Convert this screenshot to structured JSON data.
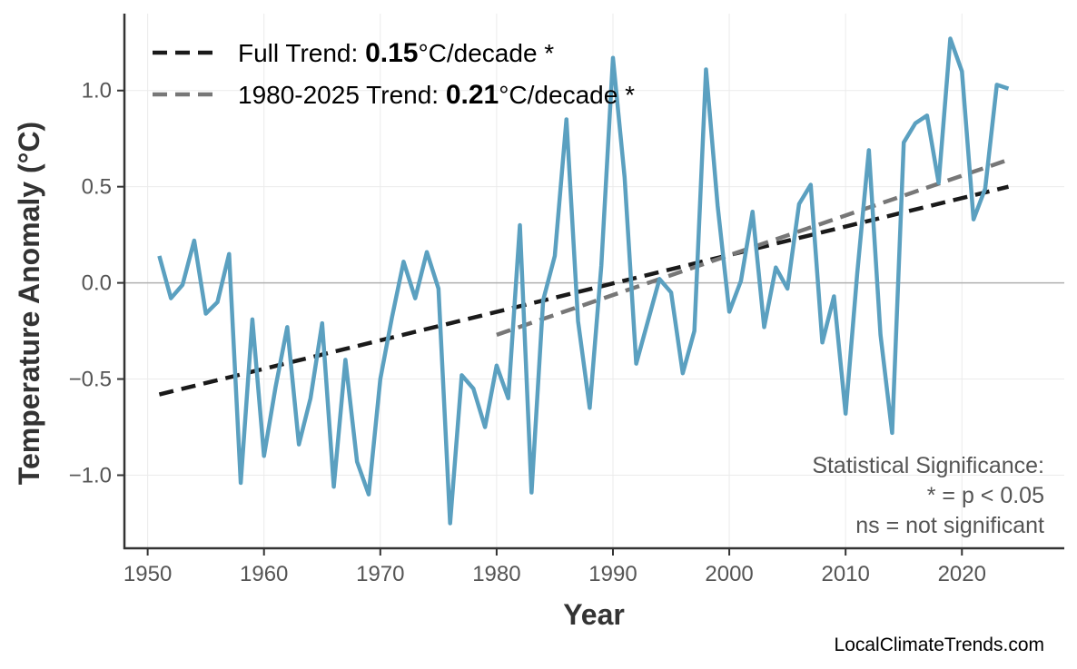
{
  "chart_data": {
    "type": "line",
    "title": "",
    "xlabel": "Year",
    "ylabel": "Temperature Anomaly (°C)",
    "xlim": [
      1948,
      2028.8
    ],
    "ylim": [
      -1.38,
      1.4
    ],
    "grid": true,
    "x_ticks": [
      1950,
      1960,
      1970,
      1980,
      1990,
      2000,
      2010,
      2020
    ],
    "y_ticks": [
      -1.0,
      -0.5,
      0.0,
      0.5,
      1.0
    ],
    "y_tick_labels": [
      "−1.0",
      "−0.5",
      "0.0",
      "0.5",
      "1.0"
    ],
    "series": [
      {
        "color": "#5ba0c0",
        "x": [
          1951,
          1952,
          1953,
          1954,
          1955,
          1956,
          1957,
          1958,
          1959,
          1960,
          1961,
          1962,
          1963,
          1964,
          1965,
          1966,
          1967,
          1968,
          1969,
          1970,
          1971,
          1972,
          1973,
          1974,
          1975,
          1976,
          1977,
          1978,
          1979,
          1980,
          1981,
          1982,
          1983,
          1984,
          1985,
          1986,
          1987,
          1988,
          1989,
          1990,
          1991,
          1992,
          1993,
          1994,
          1995,
          1996,
          1997,
          1998,
          1999,
          2000,
          2001,
          2002,
          2003,
          2004,
          2005,
          2006,
          2007,
          2008,
          2009,
          2010,
          2011,
          2012,
          2013,
          2014,
          2015,
          2016,
          2017,
          2018,
          2019,
          2020,
          2021,
          2022,
          2023,
          2024
        ],
        "y": [
          0.14,
          -0.08,
          -0.01,
          0.22,
          -0.16,
          -0.1,
          0.15,
          -1.04,
          -0.19,
          -0.9,
          -0.54,
          -0.23,
          -0.84,
          -0.6,
          -0.21,
          -1.06,
          -0.4,
          -0.93,
          -1.1,
          -0.5,
          -0.18,
          0.11,
          -0.08,
          0.16,
          -0.03,
          -1.25,
          -0.48,
          -0.55,
          -0.75,
          -0.43,
          -0.6,
          0.3,
          -1.09,
          -0.09,
          0.14,
          0.85,
          -0.2,
          -0.65,
          0.09,
          1.17,
          0.55,
          -0.42,
          -0.2,
          0.02,
          -0.05,
          -0.47,
          -0.25,
          1.11,
          0.4,
          -0.15,
          0.01,
          0.37,
          -0.23,
          0.08,
          -0.03,
          0.41,
          0.51,
          -0.31,
          -0.07,
          -0.68,
          0.05,
          0.69,
          -0.27,
          -0.78,
          0.73,
          0.83,
          0.87,
          0.52,
          1.27,
          1.1,
          0.33,
          0.49,
          1.03,
          1.01
        ]
      }
    ],
    "trends": [
      {
        "label_prefix": "Full Trend: ",
        "value": "0.15",
        "label_suffix": "°C/decade *",
        "color": "#1a1a1a",
        "x": [
          1951,
          2024
        ],
        "y": [
          -0.58,
          0.5
        ]
      },
      {
        "label_prefix": "1980-2025 Trend: ",
        "value": "0.21",
        "label_suffix": "°C/decade *",
        "color": "#777777",
        "x": [
          1980,
          2024
        ],
        "y": [
          -0.27,
          0.64
        ]
      }
    ],
    "legend_position": "top-left",
    "annotation": [
      "Statistical Significance:",
      "* = p < 0.05",
      "ns = not significant"
    ],
    "watermark": "LocalClimateTrends.com"
  }
}
